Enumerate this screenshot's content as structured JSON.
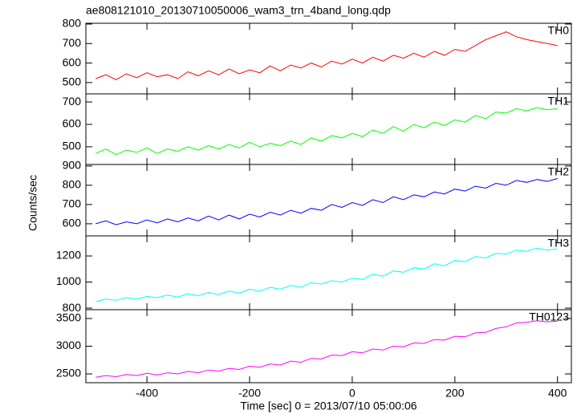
{
  "chart_data": [
    {
      "type": "line",
      "title": "ae808121010_20130710050006_wam3_trn_4band_long.qdp",
      "x": [
        -500,
        -480,
        -460,
        -440,
        -420,
        -400,
        -380,
        -360,
        -340,
        -320,
        -300,
        -280,
        -260,
        -240,
        -220,
        -200,
        -180,
        -160,
        -140,
        -120,
        -100,
        -80,
        -60,
        -40,
        -20,
        0,
        20,
        40,
        60,
        80,
        100,
        120,
        140,
        160,
        180,
        200,
        220,
        240,
        260,
        280,
        300,
        320,
        340,
        360,
        380,
        400
      ],
      "series": [
        {
          "name": "TH0",
          "color": "#ff0000",
          "values": [
            520,
            540,
            515,
            545,
            525,
            550,
            530,
            540,
            520,
            555,
            535,
            560,
            540,
            570,
            545,
            565,
            550,
            585,
            560,
            590,
            575,
            600,
            580,
            610,
            595,
            620,
            600,
            630,
            610,
            640,
            625,
            650,
            630,
            660,
            640,
            670,
            660,
            690,
            720,
            740,
            760,
            735,
            720,
            710,
            700,
            690
          ]
        }
      ],
      "xlim": [
        -519,
        427
      ],
      "xticks": [
        -400,
        -200,
        0,
        200,
        400
      ],
      "ylim": [
        442,
        804
      ],
      "yticks": [
        500,
        600,
        700,
        800
      ]
    },
    {
      "type": "line",
      "x": [
        -500,
        -480,
        -460,
        -440,
        -420,
        -400,
        -380,
        -360,
        -340,
        -320,
        -300,
        -280,
        -260,
        -240,
        -220,
        -200,
        -180,
        -160,
        -140,
        -120,
        -100,
        -80,
        -60,
        -40,
        -20,
        0,
        20,
        40,
        60,
        80,
        100,
        120,
        140,
        160,
        180,
        200,
        220,
        240,
        260,
        280,
        300,
        320,
        340,
        360,
        380,
        400
      ],
      "series": [
        {
          "name": "TH1",
          "color": "#00ff00",
          "values": [
            470,
            490,
            465,
            485,
            475,
            495,
            470,
            490,
            480,
            500,
            485,
            505,
            490,
            510,
            495,
            520,
            500,
            515,
            505,
            525,
            510,
            540,
            525,
            550,
            540,
            560,
            545,
            575,
            560,
            590,
            570,
            600,
            585,
            610,
            595,
            620,
            610,
            640,
            625,
            655,
            650,
            670,
            660,
            675,
            665,
            670
          ]
        }
      ],
      "xlim": [
        -519,
        427
      ],
      "xticks": [
        -400,
        -200,
        0,
        200,
        400
      ],
      "ylim": [
        421,
        736
      ],
      "yticks": [
        500,
        600,
        700
      ]
    },
    {
      "type": "line",
      "ylabel": "Counts/sec",
      "x": [
        -500,
        -480,
        -460,
        -440,
        -420,
        -400,
        -380,
        -360,
        -340,
        -320,
        -300,
        -280,
        -260,
        -240,
        -220,
        -200,
        -180,
        -160,
        -140,
        -120,
        -100,
        -80,
        -60,
        -40,
        -20,
        0,
        20,
        40,
        60,
        80,
        100,
        120,
        140,
        160,
        180,
        200,
        220,
        240,
        260,
        280,
        300,
        320,
        340,
        360,
        380,
        400
      ],
      "series": [
        {
          "name": "TH2",
          "color": "#0000ff",
          "values": [
            600,
            615,
            595,
            610,
            600,
            620,
            605,
            625,
            610,
            630,
            615,
            640,
            620,
            645,
            625,
            650,
            635,
            660,
            645,
            670,
            655,
            680,
            670,
            700,
            685,
            710,
            695,
            725,
            710,
            740,
            725,
            750,
            740,
            765,
            755,
            780,
            770,
            795,
            785,
            810,
            800,
            825,
            815,
            830,
            820,
            835
          ]
        }
      ],
      "xlim": [
        -519,
        427
      ],
      "xticks": [
        -400,
        -200,
        0,
        200,
        400
      ],
      "ylim": [
        537,
        908
      ],
      "yticks": [
        600,
        700,
        800,
        900
      ]
    },
    {
      "type": "line",
      "x": [
        -500,
        -480,
        -460,
        -440,
        -420,
        -400,
        -380,
        -360,
        -340,
        -320,
        -300,
        -280,
        -260,
        -240,
        -220,
        -200,
        -180,
        -160,
        -140,
        -120,
        -100,
        -80,
        -60,
        -40,
        -20,
        0,
        20,
        40,
        60,
        80,
        100,
        120,
        140,
        160,
        180,
        200,
        220,
        240,
        260,
        280,
        300,
        320,
        340,
        360,
        380,
        400
      ],
      "series": [
        {
          "name": "TH3",
          "color": "#00ffff",
          "values": [
            850,
            870,
            860,
            880,
            870,
            890,
            880,
            900,
            885,
            910,
            895,
            920,
            905,
            930,
            915,
            945,
            930,
            960,
            945,
            975,
            960,
            995,
            985,
            1010,
            1000,
            1030,
            1020,
            1060,
            1045,
            1085,
            1075,
            1110,
            1100,
            1140,
            1125,
            1165,
            1155,
            1195,
            1185,
            1220,
            1215,
            1245,
            1235,
            1260,
            1245,
            1255
          ]
        }
      ],
      "xlim": [
        -519,
        427
      ],
      "xticks": [
        -400,
        -200,
        0,
        200,
        400
      ],
      "ylim": [
        788,
        1354
      ],
      "yticks": [
        800,
        1000,
        1200
      ]
    },
    {
      "type": "line",
      "xlabel": "Time [sec] 0 = 2013/07/10 05:00:06",
      "x": [
        -500,
        -480,
        -460,
        -440,
        -420,
        -400,
        -380,
        -360,
        -340,
        -320,
        -300,
        -280,
        -260,
        -240,
        -220,
        -200,
        -180,
        -160,
        -140,
        -120,
        -100,
        -80,
        -60,
        -40,
        -20,
        0,
        20,
        40,
        60,
        80,
        100,
        120,
        140,
        160,
        180,
        200,
        220,
        240,
        260,
        280,
        300,
        320,
        340,
        360,
        380,
        400
      ],
      "series": [
        {
          "name": "TH0123",
          "color": "#ff00ff",
          "values": [
            2440,
            2470,
            2450,
            2490,
            2470,
            2510,
            2480,
            2520,
            2500,
            2545,
            2520,
            2570,
            2550,
            2600,
            2580,
            2640,
            2620,
            2680,
            2660,
            2730,
            2710,
            2780,
            2770,
            2840,
            2830,
            2900,
            2880,
            2950,
            2930,
            3000,
            2990,
            3060,
            3050,
            3120,
            3110,
            3180,
            3170,
            3240,
            3250,
            3320,
            3350,
            3420,
            3430,
            3460,
            3440,
            3450
          ]
        }
      ],
      "xlim": [
        -519,
        427
      ],
      "xticks": [
        -400,
        -200,
        0,
        200,
        400
      ],
      "ylim": [
        2341,
        3659
      ],
      "yticks": [
        2500,
        3000,
        3500
      ]
    }
  ]
}
